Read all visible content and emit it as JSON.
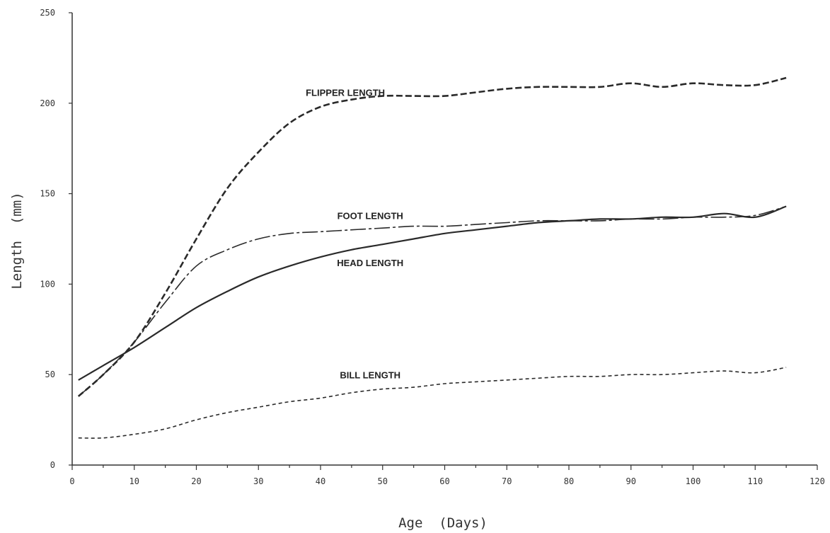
{
  "chart_data": {
    "type": "line",
    "title": "",
    "xlabel": "Age  (Days)",
    "ylabel": "Length  (mm)",
    "xlim": [
      0,
      120
    ],
    "ylim": [
      0,
      250
    ],
    "xticks": [
      0,
      10,
      20,
      30,
      40,
      50,
      60,
      70,
      80,
      90,
      100,
      110,
      120
    ],
    "xtick_labels": [
      "0",
      "10",
      "20",
      "30",
      "40",
      "50",
      "60",
      "70",
      "80",
      "90",
      "100",
      "110",
      "120"
    ],
    "yticks": [
      0,
      50,
      100,
      150,
      200,
      250
    ],
    "ytick_labels": [
      "0",
      "50",
      "100",
      "150",
      "200",
      "250"
    ],
    "grid": false,
    "legend": "inline labels",
    "series": [
      {
        "name": "FLIPPER LENGTH",
        "style": "dashed",
        "x": [
          1,
          5,
          10,
          15,
          20,
          25,
          30,
          35,
          40,
          45,
          50,
          55,
          60,
          65,
          70,
          75,
          80,
          85,
          90,
          95,
          100,
          105,
          110,
          115
        ],
        "y": [
          38,
          50,
          68,
          95,
          125,
          153,
          173,
          189,
          198,
          202,
          204,
          204,
          204,
          206,
          208,
          209,
          209,
          209,
          211,
          209,
          211,
          210,
          210,
          214
        ]
      },
      {
        "name": "FOOT LENGTH",
        "style": "long-dash",
        "x": [
          1,
          5,
          10,
          15,
          20,
          25,
          30,
          35,
          40,
          45,
          50,
          55,
          60,
          65,
          70,
          75,
          80,
          85,
          90,
          95,
          100,
          105,
          110,
          115
        ],
        "y": [
          38,
          50,
          68,
          90,
          110,
          119,
          125,
          128,
          129,
          130,
          131,
          132,
          132,
          133,
          134,
          135,
          135,
          135,
          136,
          136,
          137,
          137,
          138,
          143
        ]
      },
      {
        "name": "HEAD LENGTH",
        "style": "solid",
        "x": [
          1,
          5,
          10,
          15,
          20,
          25,
          30,
          35,
          40,
          45,
          50,
          55,
          60,
          65,
          70,
          75,
          80,
          85,
          90,
          95,
          100,
          105,
          110,
          115
        ],
        "y": [
          47,
          55,
          65,
          76,
          87,
          96,
          104,
          110,
          115,
          119,
          122,
          125,
          128,
          130,
          132,
          134,
          135,
          136,
          136,
          137,
          137,
          139,
          137,
          143
        ]
      },
      {
        "name": "BILL LENGTH",
        "style": "short-dash",
        "x": [
          1,
          5,
          10,
          15,
          20,
          25,
          30,
          35,
          40,
          45,
          50,
          55,
          60,
          65,
          70,
          75,
          80,
          85,
          90,
          95,
          100,
          105,
          110,
          115
        ],
        "y": [
          15,
          15,
          17,
          20,
          25,
          29,
          32,
          35,
          37,
          40,
          42,
          43,
          45,
          46,
          47,
          48,
          49,
          49,
          50,
          50,
          51,
          52,
          51,
          54
        ]
      }
    ]
  }
}
